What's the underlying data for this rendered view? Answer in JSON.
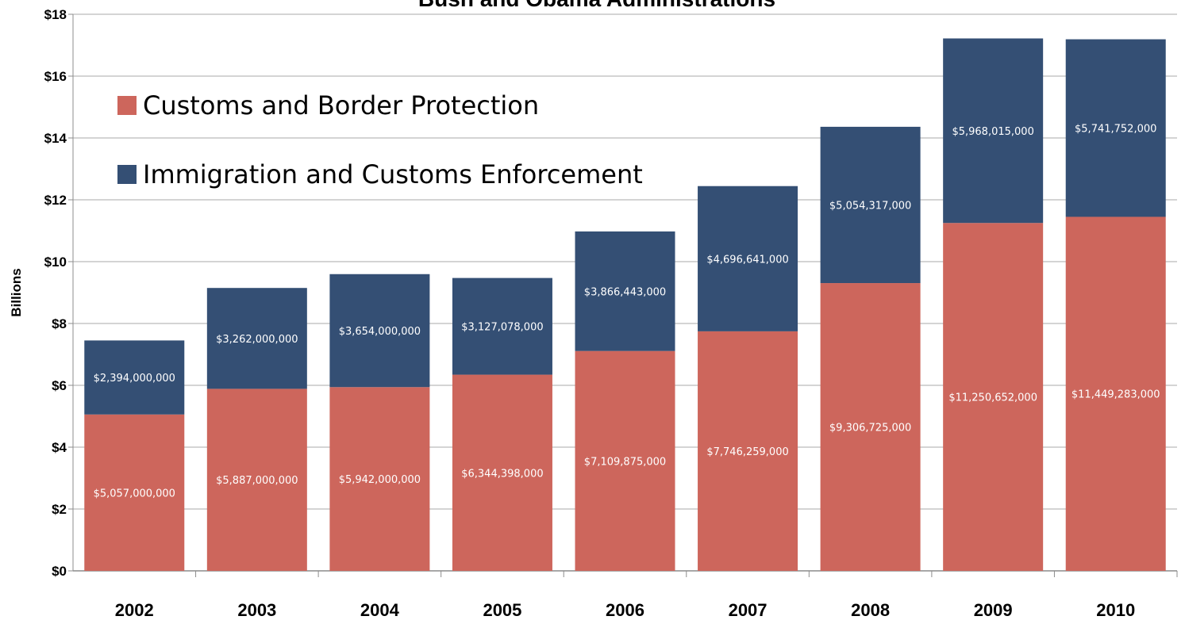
{
  "chart_data": {
    "type": "bar",
    "stacked": true,
    "title": "Bush and Obama Administrations",
    "ylabel": "Billions",
    "xlabel": "",
    "ylim": [
      0,
      18
    ],
    "yticks": [
      0,
      2,
      4,
      6,
      8,
      10,
      12,
      14,
      16,
      18
    ],
    "ytick_labels": [
      "$0",
      "$2",
      "$4",
      "$6",
      "$8",
      "$10",
      "$12",
      "$14",
      "$16",
      "$18"
    ],
    "grid": true,
    "legend_position": "top-left",
    "categories": [
      "2002",
      "2003",
      "2004",
      "2005",
      "2006",
      "2007",
      "2008",
      "2009",
      "2010"
    ],
    "series": [
      {
        "name": "Customs and Border Protection",
        "color": "#cd665c",
        "values": [
          5.057,
          5.887,
          5.942,
          6.344398,
          7.109875,
          7.746259,
          9.306725,
          11.250652,
          11.449283
        ],
        "labels": [
          "$5,057,000,000",
          "$5,887,000,000",
          "$5,942,000,000",
          "$6,344,398,000",
          "$7,109,875,000",
          "$7,746,259,000",
          "$9,306,725,000",
          "$11,250,652,000",
          "$11,449,283,000"
        ]
      },
      {
        "name": "Immigration and Customs Enforcement",
        "color": "#344f74",
        "values": [
          2.394,
          3.262,
          3.654,
          3.127078,
          3.866443,
          4.696641,
          5.054317,
          5.968015,
          5.741752
        ],
        "labels": [
          "$2,394,000,000",
          "$3,262,000,000",
          "$3,654,000,000",
          "$3,127,078,000",
          "$3,866,443,000",
          "$4,696,641,000",
          "$5,054,317,000",
          "$5,968,015,000",
          "$5,741,752,000"
        ]
      }
    ]
  }
}
